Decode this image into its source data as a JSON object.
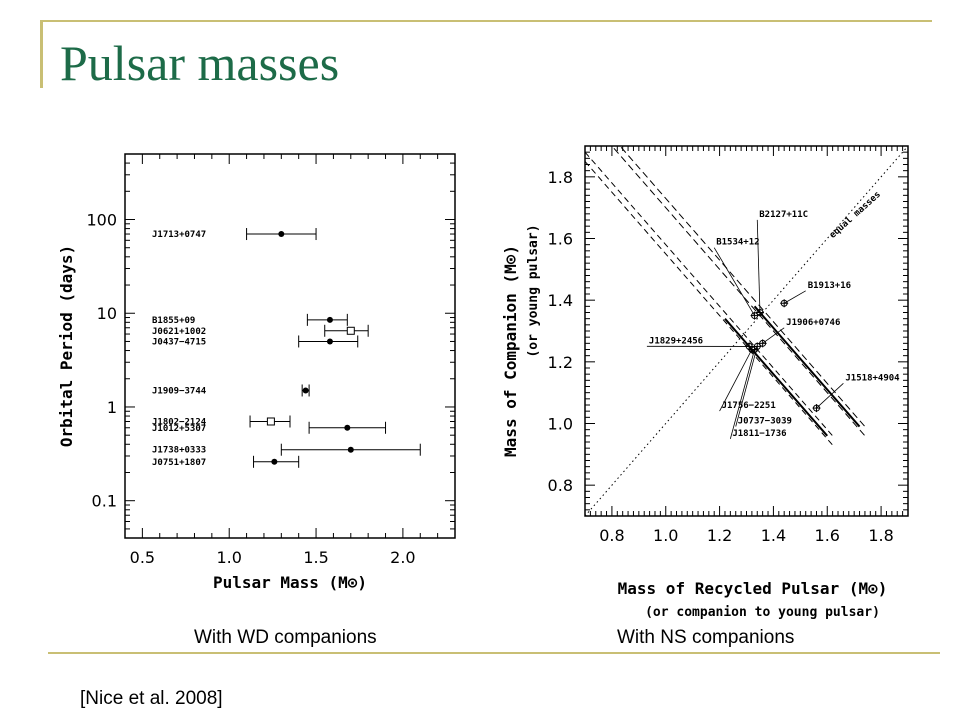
{
  "slide": {
    "title": "Pulsar masses",
    "caption_left": "With WD companions",
    "caption_right": "With NS companions",
    "citation": "[Nice et al. 2008]"
  },
  "colors": {
    "title": "#1d6b48",
    "rule": "#c9bf74"
  },
  "chart_data": [
    {
      "type": "scatter",
      "xlabel": "Pulsar Mass (M⊙)",
      "ylabel": "Orbital Period (days)",
      "xlim": [
        0.4,
        2.3
      ],
      "ylim": [
        0.04,
        500
      ],
      "yscale": "log",
      "xticks": [
        "0.5",
        "1.0",
        "1.5",
        "2.0"
      ],
      "yticks": [
        "100",
        "10",
        "1",
        "0.1"
      ],
      "series": [
        {
          "points": [
            {
              "label": "J1713+0747",
              "x": 1.3,
              "y": 70,
              "xerr": [
                1.1,
                1.5
              ],
              "marker": "filled"
            },
            {
              "label": "B1855+09",
              "x": 1.58,
              "y": 8.5,
              "xerr": [
                1.45,
                1.68
              ],
              "marker": "filled"
            },
            {
              "label": "J0621+1002",
              "x": 1.7,
              "y": 6.5,
              "xerr": [
                1.55,
                1.8
              ],
              "marker": "open-square"
            },
            {
              "label": "J0437−4715",
              "x": 1.58,
              "y": 5.0,
              "xerr": [
                1.4,
                1.74
              ],
              "marker": "filled"
            },
            {
              "label": "J1909−3744",
              "x": 1.44,
              "y": 1.5,
              "xerr": [
                1.42,
                1.46
              ],
              "marker": "filled"
            },
            {
              "label": "J1802−2124",
              "x": 1.24,
              "y": 0.7,
              "xerr": [
                1.12,
                1.35
              ],
              "marker": "open-square"
            },
            {
              "label": "J1012+5307",
              "x": 1.68,
              "y": 0.6,
              "xerr": [
                1.46,
                1.9
              ],
              "marker": "filled"
            },
            {
              "label": "J1738+0333",
              "x": 1.7,
              "y": 0.35,
              "xerr": [
                1.3,
                2.1
              ],
              "marker": "filled"
            },
            {
              "label": "J0751+1807",
              "x": 1.26,
              "y": 0.26,
              "xerr": [
                1.14,
                1.4
              ],
              "marker": "filled"
            }
          ]
        }
      ]
    },
    {
      "type": "scatter",
      "xlabel": "Mass of Recycled Pulsar (M⊙)",
      "xlabel2": "(or companion to young pulsar)",
      "ylabel": "Mass of Companion (M⊙)",
      "ylabel2": "(or young pulsar)",
      "xlim": [
        0.7,
        1.9
      ],
      "ylim": [
        0.7,
        1.9
      ],
      "xticks": [
        "0.8",
        "1.0",
        "1.2",
        "1.4",
        "1.6",
        "1.8"
      ],
      "yticks": [
        "0.8",
        "1.0",
        "1.2",
        "1.4",
        "1.6",
        "1.8"
      ],
      "line_label": "equal masses",
      "points": [
        {
          "label": "B2127+11C",
          "x": 1.35,
          "y": 1.36
        },
        {
          "label": "B1534+12",
          "x": 1.33,
          "y": 1.35
        },
        {
          "label": "B1913+16",
          "x": 1.44,
          "y": 1.39
        },
        {
          "label": "J1906+0746",
          "x": 1.36,
          "y": 1.26
        },
        {
          "label": "J1829+2456",
          "x": 1.31,
          "y": 1.25
        },
        {
          "label": "J1756−2251",
          "x": 1.32,
          "y": 1.24
        },
        {
          "label": "J0737−3039",
          "x": 1.34,
          "y": 1.25
        },
        {
          "label": "J1811−1736",
          "x": 1.33,
          "y": 1.24
        },
        {
          "label": "J1518+4904",
          "x": 1.56,
          "y": 1.05
        }
      ]
    }
  ]
}
